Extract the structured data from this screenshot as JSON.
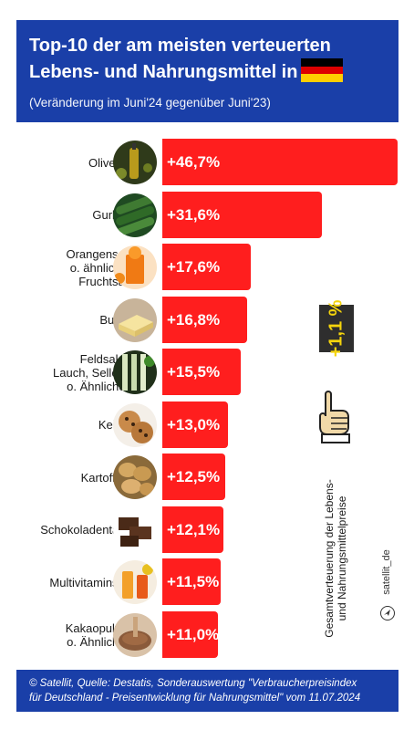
{
  "header": {
    "title_line1": "Top-10 der am meisten verteuerten",
    "title_line2": "Lebens- und Nahrungsmittel in",
    "subtitle": "(Veränderung im Juni'24 gegenüber Juni'23)",
    "flag_colors": [
      "#000000",
      "#dd0000",
      "#ffce00"
    ],
    "flag_icon": "germany-flag-icon"
  },
  "chart_data": {
    "type": "bar",
    "orientation": "horizontal",
    "title": "Top-10 der am meisten verteuerten Lebens- und Nahrungsmittel in",
    "subtitle": "(Veränderung im Juni'24 gegenüber Juni'23)",
    "categories": [
      "Olivenöl",
      "Gurken",
      "Orangensaft o. ähnlicher Fruchtsaft",
      "Butter",
      "Feldsalat, Lauch, Sellerie o. Ähnliches",
      "Kekse",
      "Kartoffeln",
      "Schokoladentafel",
      "Multivitaminsaft",
      "Kakaopulver o. Ähnliches"
    ],
    "category_lines": [
      [
        "Olivenöl"
      ],
      [
        "Gurken"
      ],
      [
        "Orangensaft",
        "o. ähnlicher",
        "Fruchtsaft"
      ],
      [
        "Butter"
      ],
      [
        "Feldsalat,",
        "Lauch, Sellerie",
        "o. Ähnliches"
      ],
      [
        "Kekse"
      ],
      [
        "Kartoffeln"
      ],
      [
        "Schokoladentafel"
      ],
      [
        "Multivitaminsaft"
      ],
      [
        "Kakaopulver",
        "o. Ähnliches"
      ]
    ],
    "values": [
      46.7,
      31.6,
      17.6,
      16.8,
      15.5,
      13.0,
      12.5,
      12.1,
      11.5,
      11.0
    ],
    "value_labels": [
      "+46,7%",
      "+31,6%",
      "+17,6%",
      "+16,8%",
      "+15,5%",
      "+13,0%",
      "+12,5%",
      "+12,1%",
      "+11,5%",
      "+11,0%"
    ],
    "icons": [
      "olive-oil-icon",
      "cucumber-icon",
      "orange-juice-icon",
      "butter-icon",
      "leek-salad-icon",
      "cookies-icon",
      "potatoes-icon",
      "chocolate-icon",
      "multivitamin-juice-icon",
      "cocoa-powder-icon"
    ],
    "bar_color": "#ff1e1e",
    "grid": false,
    "legend": "none"
  },
  "side": {
    "overall_badge": "+1,1 %",
    "overall_label_line1": "Gesamtverteuerung der Lebens-",
    "overall_label_line2": "und Nahrungsmittelpreise",
    "badge_bg": "#2e2e2e",
    "badge_text_color": "#f4d40c",
    "pointer_icon": "pointing-hand-icon",
    "brand": "satellit_de",
    "brand_icon": "send-arrow-icon"
  },
  "footer": {
    "line1": "© Satellit, Quelle: Destatis, Sonderauswertung \"Verbraucherpreisindex",
    "line2": "für Deutschland - Preisentwicklung für Nahrungsmittel\" vom 11.07.2024"
  }
}
